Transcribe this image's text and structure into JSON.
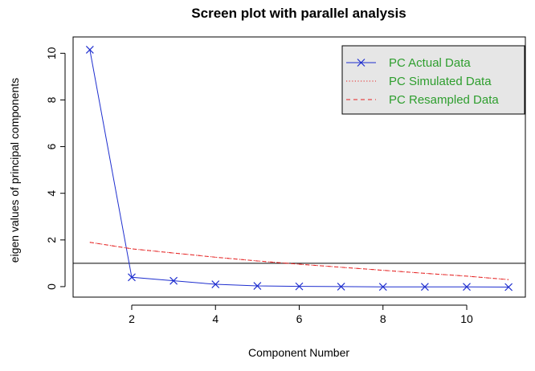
{
  "chart_data": {
    "type": "line",
    "title": "Screen plot with parallel analysis",
    "xlabel": "Component Number",
    "ylabel": "eigen values of principal components",
    "xlim": [
      0.6,
      11.4
    ],
    "ylim": [
      -0.45,
      10.7
    ],
    "xticks": [
      2,
      4,
      6,
      8,
      10
    ],
    "yticks": [
      0,
      2,
      4,
      6,
      8,
      10
    ],
    "grid": false,
    "legend_position": "top-right",
    "legend_bg": "#e6e6e6",
    "legend_text_color": "#2e9e2e",
    "reference_line": {
      "y": 1,
      "color": "#000000"
    },
    "x": [
      1,
      2,
      3,
      4,
      5,
      6,
      7,
      8,
      9,
      10,
      11
    ],
    "series": [
      {
        "name": "PC  Actual Data",
        "color": "#1f2fcf",
        "style": "solid-x",
        "values": [
          10.15,
          0.4,
          0.25,
          0.1,
          0.03,
          0.01,
          0.0,
          -0.01,
          -0.01,
          -0.01,
          -0.02
        ]
      },
      {
        "name": "PC  Simulated Data",
        "color": "#e52222",
        "style": "dotted",
        "values": [
          1.9,
          1.62,
          1.44,
          1.26,
          1.1,
          0.96,
          0.83,
          0.7,
          0.57,
          0.45,
          0.3
        ]
      },
      {
        "name": "PC  Resampled Data",
        "color": "#e52222",
        "style": "dashed",
        "values": [
          1.9,
          1.62,
          1.44,
          1.26,
          1.1,
          0.96,
          0.83,
          0.7,
          0.57,
          0.45,
          0.3
        ]
      }
    ]
  }
}
